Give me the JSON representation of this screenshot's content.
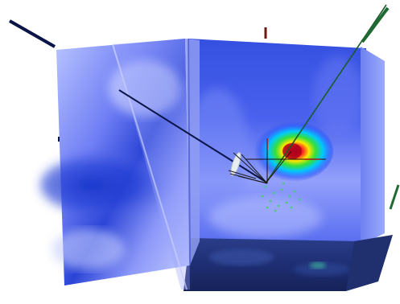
{
  "scene": {
    "description_label": "",
    "colors": {
      "background": "#ffffff",
      "field_light": "#c9d2ff",
      "field_mid": "#5b6cf2",
      "field_dark": "#1c2fc6",
      "floor_dark": "#1a2a66",
      "floor_mid": "#2c3f8c",
      "hotspot_core": "#d0002a",
      "hotspot_ring_yellow": "#ffe600",
      "hotspot_ring_green": "#36e03a",
      "hotspot_ring_cyan": "#00c8ff",
      "ray_dark": "#0a1446",
      "ray_green": "#1b5b2a",
      "wire_white": "#e8eef0",
      "marker_red": "#b01010",
      "marker_brown": "#6b1a12"
    },
    "icons": [
      "cone-probe-icon",
      "beam-ray-icon"
    ]
  }
}
